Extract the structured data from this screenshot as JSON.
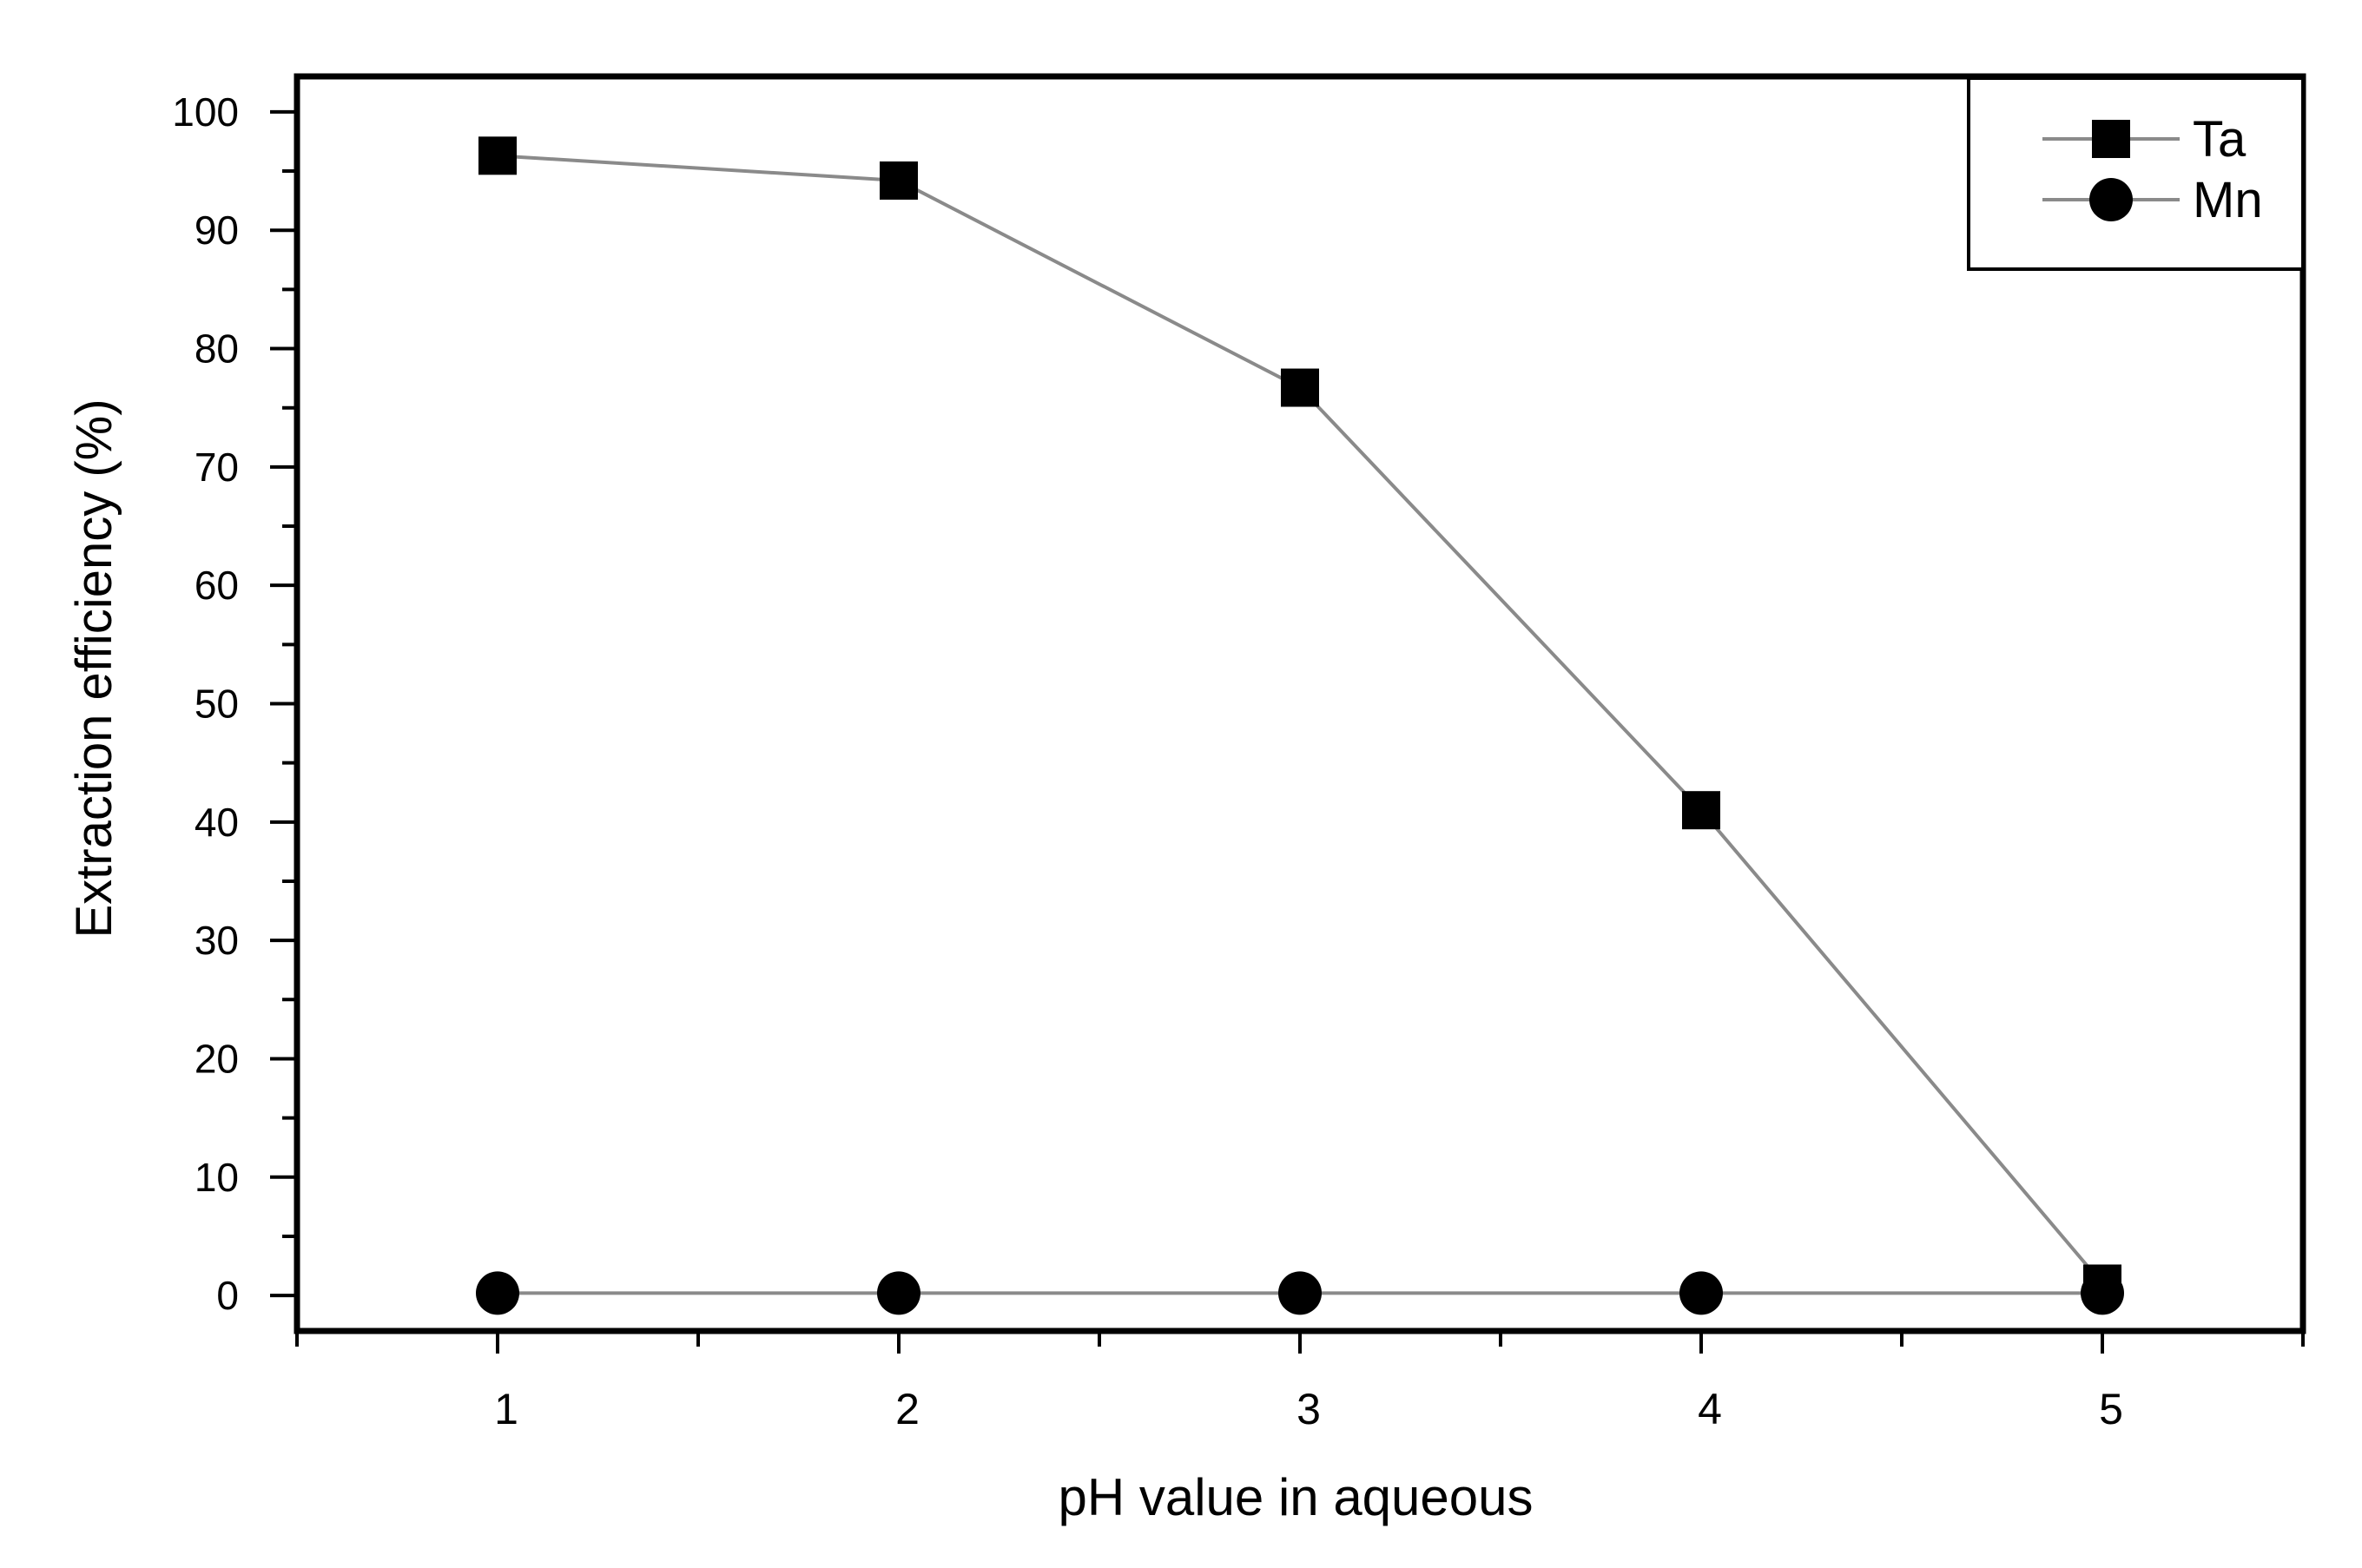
{
  "chart_data": {
    "type": "line",
    "title": "",
    "xlabel": "pH value in aqueous",
    "ylabel": "Extraction efficiency (%)",
    "x": [
      1,
      2,
      3,
      4,
      5
    ],
    "xlim": [
      0.5,
      5.5
    ],
    "ylim": [
      -3,
      103
    ],
    "xticks": [
      1,
      2,
      3,
      4,
      5
    ],
    "yticks": [
      0,
      10,
      20,
      30,
      40,
      50,
      60,
      70,
      80,
      90,
      100
    ],
    "grid": false,
    "legend_position": "top-right",
    "series": [
      {
        "name": "Ta",
        "marker": "square",
        "values": [
          96.3,
          94.2,
          76.7,
          41.0,
          1.0
        ],
        "color": "#000000",
        "line_color": "#8a8a8a"
      },
      {
        "name": "Mn",
        "marker": "circle",
        "values": [
          0.2,
          0.2,
          0.2,
          0.2,
          0.2
        ],
        "color": "#000000",
        "line_color": "#8a8a8a"
      }
    ]
  }
}
